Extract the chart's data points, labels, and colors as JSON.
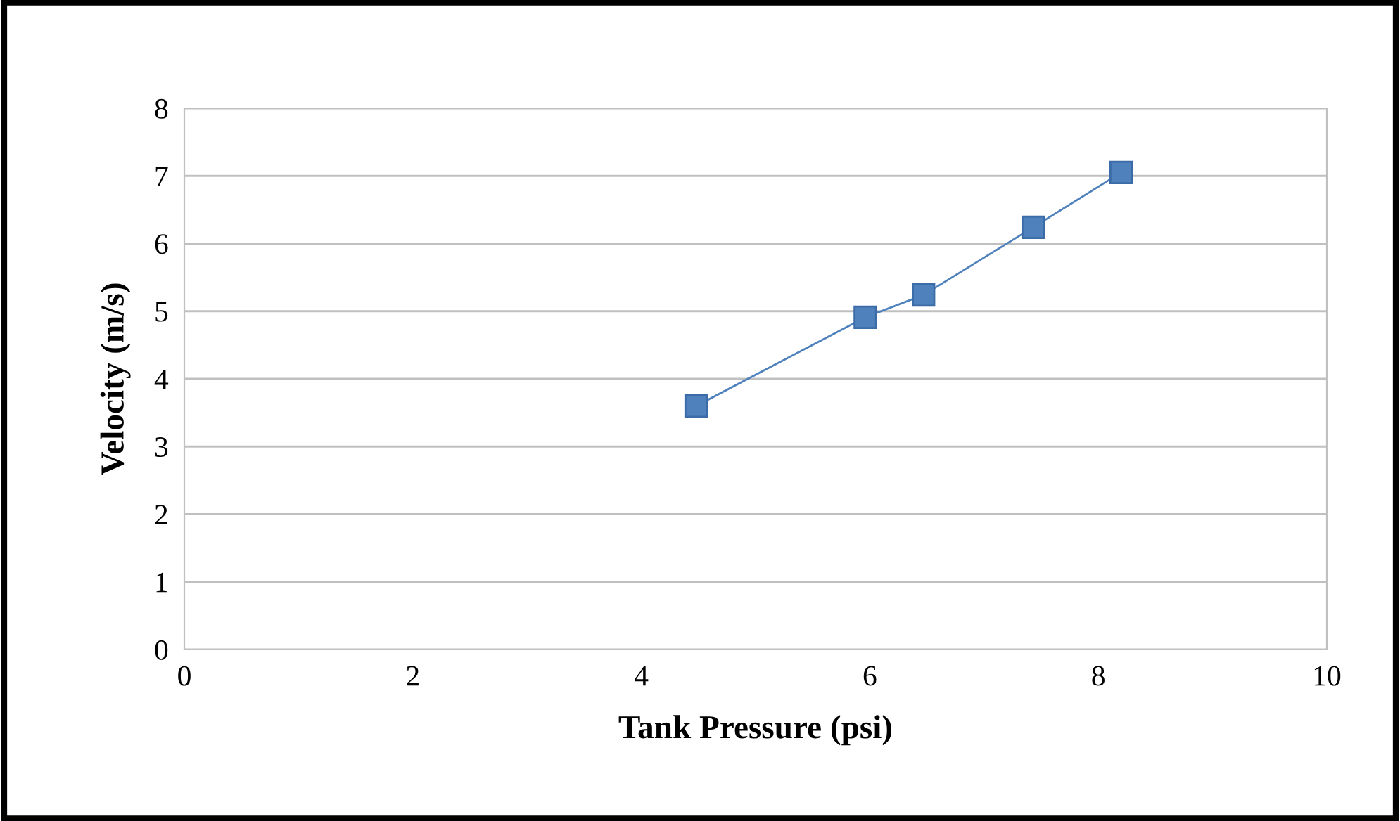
{
  "chart_data": {
    "type": "line",
    "xlabel": "Tank Pressure (psi)",
    "ylabel": "Velocity (m/s)",
    "x": [
      4.48,
      5.96,
      6.47,
      7.43,
      8.2
    ],
    "series": [
      {
        "color": "#4f81bd",
        "values": [
          3.6,
          4.91,
          5.24,
          6.24,
          7.05
        ]
      }
    ],
    "xlim": [
      0,
      10
    ],
    "xticks": [
      0,
      2,
      4,
      6,
      8,
      10
    ],
    "ylim": [
      0,
      8
    ],
    "yticks": [
      0,
      1,
      2,
      3,
      4,
      5,
      6,
      7,
      8
    ],
    "grid": "y",
    "marker": "square",
    "line_style": "solid",
    "legend": false
  }
}
